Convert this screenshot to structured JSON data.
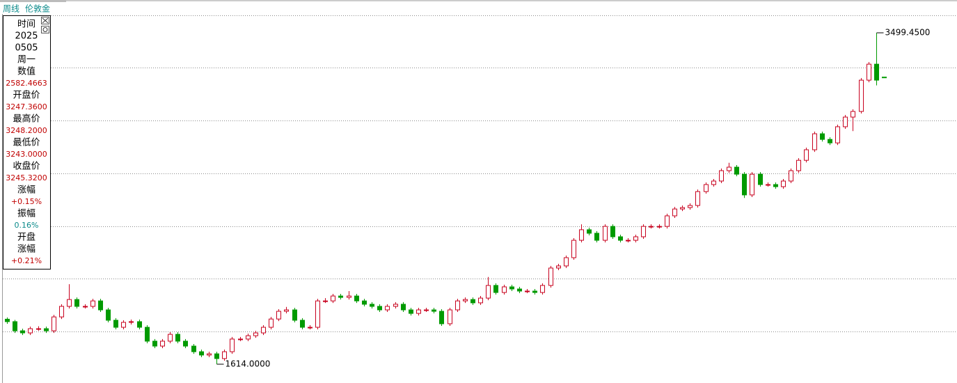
{
  "header": {
    "period": "周线",
    "symbol": "伦敦金",
    "color": "#0a8a8a"
  },
  "info_panel": {
    "rows": [
      {
        "text": "时间"
      },
      {
        "text": "2025"
      },
      {
        "text": "0505"
      },
      {
        "text": "周一"
      },
      {
        "text": "数值"
      },
      {
        "text": "2582.4663",
        "color": "#c00000"
      },
      {
        "text": "开盘价"
      },
      {
        "text": "3247.3600",
        "color": "#c00000"
      },
      {
        "text": "最高价"
      },
      {
        "text": "3248.2000",
        "color": "#c00000"
      },
      {
        "text": "最低价"
      },
      {
        "text": "3243.0000",
        "color": "#c00000"
      },
      {
        "text": "收盘价"
      },
      {
        "text": "3245.3200",
        "color": "#c00000"
      },
      {
        "text": "涨幅"
      },
      {
        "text": "+0.15%",
        "color": "#c00000"
      },
      {
        "text": "振幅"
      },
      {
        "text": "0.16%",
        "color": "#0a8a8a"
      },
      {
        "text": "开盘"
      },
      {
        "text": "涨幅"
      },
      {
        "text": "+0.21%",
        "color": "#c00000"
      }
    ]
  },
  "chart_data": {
    "type": "candlestick",
    "up_color": "#c8001e",
    "down_color": "#009a00",
    "ylim": [
      1507,
      3686
    ],
    "gridlines": [
      1800,
      2100,
      2400,
      2700,
      3000,
      3300,
      3600
    ],
    "annotations": [
      {
        "value": 3499.45,
        "label": "3499.4500",
        "kind": "high"
      },
      {
        "value": 1614,
        "label": "1614.0000",
        "kind": "low"
      }
    ],
    "candles": [
      [
        1870,
        1880,
        1844,
        1856
      ],
      [
        1856,
        1866,
        1792,
        1804
      ],
      [
        1804,
        1816,
        1780,
        1792
      ],
      [
        1792,
        1828,
        1780,
        1816
      ],
      [
        1816,
        1830,
        1804,
        1816
      ],
      [
        1816,
        1828,
        1792,
        1804
      ],
      [
        1804,
        1895,
        1792,
        1883
      ],
      [
        1883,
        1955,
        1871,
        1943
      ],
      [
        1943,
        2069,
        1931,
        1982
      ],
      [
        1982,
        1994,
        1931,
        1943
      ],
      [
        1943,
        1955,
        1931,
        1943
      ],
      [
        1943,
        1986,
        1931,
        1974
      ],
      [
        1974,
        1986,
        1911,
        1923
      ],
      [
        1923,
        1935,
        1852,
        1864
      ],
      [
        1864,
        1876,
        1812,
        1824
      ],
      [
        1824,
        1864,
        1812,
        1852
      ],
      [
        1852,
        1868,
        1840,
        1856
      ],
      [
        1856,
        1868,
        1812,
        1824
      ],
      [
        1824,
        1836,
        1733,
        1745
      ],
      [
        1745,
        1757,
        1705,
        1717
      ],
      [
        1717,
        1757,
        1705,
        1745
      ],
      [
        1745,
        1796,
        1733,
        1784
      ],
      [
        1784,
        1796,
        1733,
        1745
      ],
      [
        1745,
        1757,
        1705,
        1717
      ],
      [
        1717,
        1729,
        1673,
        1685
      ],
      [
        1685,
        1697,
        1654,
        1666
      ],
      [
        1666,
        1685,
        1654,
        1673
      ],
      [
        1673,
        1685,
        1614,
        1646
      ],
      [
        1646,
        1697,
        1634,
        1685
      ],
      [
        1685,
        1769,
        1673,
        1757
      ],
      [
        1757,
        1769,
        1745,
        1757
      ],
      [
        1757,
        1788,
        1745,
        1776
      ],
      [
        1776,
        1804,
        1764,
        1792
      ],
      [
        1792,
        1836,
        1780,
        1824
      ],
      [
        1824,
        1883,
        1812,
        1871
      ],
      [
        1871,
        1927,
        1859,
        1915
      ],
      [
        1915,
        1940,
        1903,
        1923
      ],
      [
        1923,
        1935,
        1852,
        1864
      ],
      [
        1864,
        1876,
        1812,
        1824
      ],
      [
        1824,
        1836,
        1812,
        1824
      ],
      [
        1824,
        1986,
        1812,
        1974
      ],
      [
        1974,
        1990,
        1962,
        1974
      ],
      [
        1974,
        2014,
        1962,
        2002
      ],
      [
        2002,
        2014,
        1982,
        1994
      ],
      [
        1994,
        2030,
        1982,
        2002
      ],
      [
        2002,
        2014,
        1962,
        1974
      ],
      [
        1974,
        1986,
        1943,
        1955
      ],
      [
        1955,
        1967,
        1931,
        1943
      ],
      [
        1943,
        1955,
        1911,
        1923
      ],
      [
        1923,
        1955,
        1911,
        1943
      ],
      [
        1943,
        1967,
        1931,
        1955
      ],
      [
        1955,
        1967,
        1911,
        1923
      ],
      [
        1923,
        1935,
        1891,
        1903
      ],
      [
        1903,
        1935,
        1891,
        1923
      ],
      [
        1923,
        1935,
        1911,
        1923
      ],
      [
        1923,
        1935,
        1903,
        1915
      ],
      [
        1915,
        1927,
        1832,
        1844
      ],
      [
        1844,
        1935,
        1832,
        1923
      ],
      [
        1923,
        1986,
        1911,
        1974
      ],
      [
        1974,
        1994,
        1962,
        1982
      ],
      [
        1982,
        1994,
        1951,
        1963
      ],
      [
        1963,
        2002,
        1951,
        1990
      ],
      [
        1990,
        2110,
        1978,
        2062
      ],
      [
        2062,
        2074,
        2010,
        2022
      ],
      [
        2022,
        2066,
        2010,
        2054
      ],
      [
        2054,
        2066,
        2030,
        2042
      ],
      [
        2042,
        2054,
        2018,
        2030
      ],
      [
        2030,
        2042,
        2018,
        2030
      ],
      [
        2030,
        2042,
        2010,
        2022
      ],
      [
        2022,
        2074,
        2010,
        2062
      ],
      [
        2062,
        2173,
        2050,
        2161
      ],
      [
        2161,
        2185,
        2149,
        2173
      ],
      [
        2173,
        2232,
        2161,
        2220
      ],
      [
        2220,
        2331,
        2208,
        2319
      ],
      [
        2319,
        2410,
        2307,
        2379
      ],
      [
        2379,
        2391,
        2347,
        2359
      ],
      [
        2359,
        2371,
        2307,
        2319
      ],
      [
        2319,
        2410,
        2307,
        2398
      ],
      [
        2398,
        2410,
        2327,
        2339
      ],
      [
        2339,
        2351,
        2307,
        2319
      ],
      [
        2319,
        2331,
        2307,
        2319
      ],
      [
        2319,
        2351,
        2307,
        2339
      ],
      [
        2339,
        2410,
        2327,
        2398
      ],
      [
        2398,
        2410,
        2386,
        2398
      ],
      [
        2398,
        2410,
        2386,
        2398
      ],
      [
        2398,
        2470,
        2386,
        2458
      ],
      [
        2458,
        2509,
        2446,
        2497
      ],
      [
        2497,
        2517,
        2485,
        2505
      ],
      [
        2505,
        2529,
        2493,
        2517
      ],
      [
        2517,
        2608,
        2505,
        2596
      ],
      [
        2596,
        2648,
        2584,
        2636
      ],
      [
        2636,
        2668,
        2624,
        2656
      ],
      [
        2656,
        2727,
        2644,
        2715
      ],
      [
        2715,
        2760,
        2703,
        2735
      ],
      [
        2735,
        2747,
        2683,
        2695
      ],
      [
        2695,
        2707,
        2560,
        2577
      ],
      [
        2577,
        2707,
        2565,
        2695
      ],
      [
        2695,
        2707,
        2624,
        2636
      ],
      [
        2636,
        2648,
        2624,
        2636
      ],
      [
        2636,
        2648,
        2612,
        2624
      ],
      [
        2624,
        2668,
        2612,
        2656
      ],
      [
        2656,
        2727,
        2644,
        2715
      ],
      [
        2715,
        2786,
        2703,
        2774
      ],
      [
        2774,
        2846,
        2762,
        2834
      ],
      [
        2834,
        2937,
        2822,
        2925
      ],
      [
        2925,
        2937,
        2881,
        2893
      ],
      [
        2893,
        2905,
        2861,
        2873
      ],
      [
        2873,
        2977,
        2861,
        2965
      ],
      [
        2965,
        3032,
        2953,
        3020
      ],
      [
        3020,
        3064,
        2940,
        3052
      ],
      [
        3052,
        3242,
        3040,
        3230
      ],
      [
        3230,
        3333,
        3218,
        3321
      ],
      [
        3321,
        3499.45,
        3200,
        3230
      ],
      [
        3247.36,
        3248.2,
        3243,
        3245.32
      ]
    ]
  }
}
